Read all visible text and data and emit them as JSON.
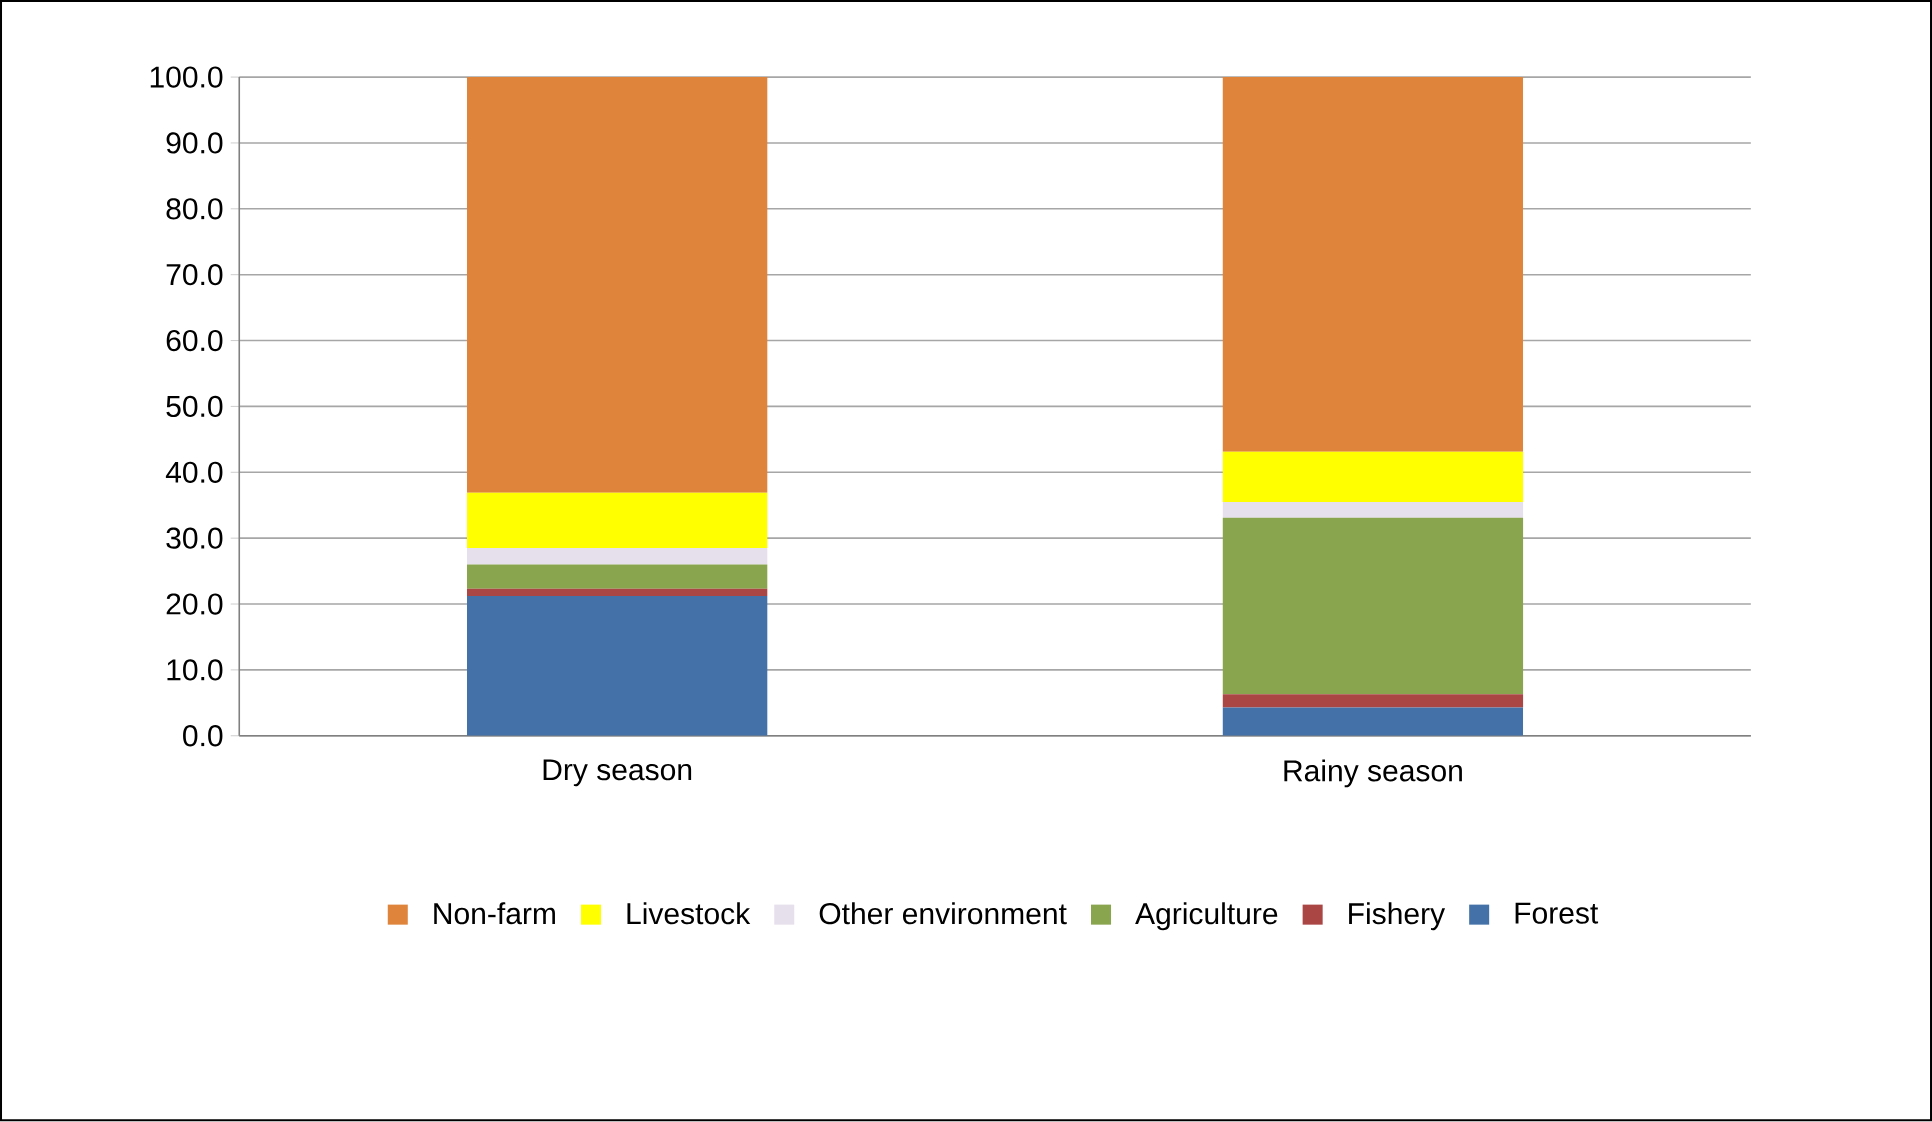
{
  "chart_data": {
    "type": "bar",
    "stacked": true,
    "categories": [
      "Dry season",
      "Rainy season"
    ],
    "series": [
      {
        "name": "Forest",
        "color": "#4472a8",
        "values": [
          21.2,
          4.3
        ]
      },
      {
        "name": "Fishery",
        "color": "#aa4644",
        "values": [
          1.1,
          2.0
        ]
      },
      {
        "name": "Agriculture",
        "color": "#89a54e",
        "values": [
          3.7,
          26.8
        ]
      },
      {
        "name": "Other environment",
        "color": "#e6dfec",
        "values": [
          2.5,
          2.4
        ]
      },
      {
        "name": "Livestock",
        "color": "#ffff00",
        "values": [
          8.4,
          7.6
        ]
      },
      {
        "name": "Non-farm",
        "color": "#de843b",
        "values": [
          63.1,
          56.9
        ]
      }
    ],
    "ylim": [
      0,
      100
    ],
    "yticks": [
      {
        "value": 0,
        "label": "0.0"
      },
      {
        "value": 10,
        "label": "10.0"
      },
      {
        "value": 20,
        "label": "20.0"
      },
      {
        "value": 30,
        "label": "30.0"
      },
      {
        "value": 40,
        "label": "40.0"
      },
      {
        "value": 50,
        "label": "50.0"
      },
      {
        "value": 60,
        "label": "60.0"
      },
      {
        "value": 70,
        "label": "70.0"
      },
      {
        "value": 80,
        "label": "80.0"
      },
      {
        "value": 90,
        "label": "90.0"
      },
      {
        "value": 100,
        "label": "100.0"
      }
    ],
    "grid": "y",
    "legend": "bottom"
  }
}
